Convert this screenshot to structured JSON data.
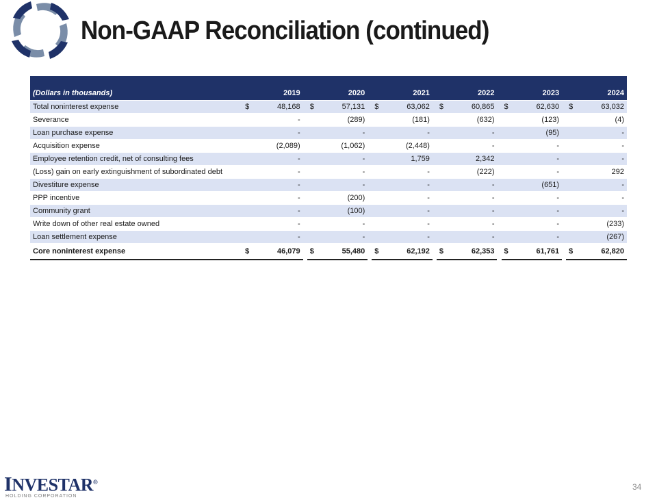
{
  "header": {
    "title": "Non-GAAP Reconciliation (continued)",
    "logo_icon": "swirl-logo-icon"
  },
  "colors": {
    "navy": "#1f3268",
    "band": "#dbe2f3",
    "steel": "#7a8da8",
    "logo_blue": "#1f3268"
  },
  "table": {
    "unit_label": "(Dollars in thousands)",
    "years": [
      "2019",
      "2020",
      "2021",
      "2022",
      "2023",
      "2024"
    ],
    "rows": [
      {
        "label": "Total noninterest expense",
        "cur": true,
        "values": [
          "48,168",
          "57,131",
          "63,062",
          "60,865",
          "62,630",
          "63,032"
        ]
      },
      {
        "label": "Severance",
        "cur": false,
        "values": [
          "-",
          "(289)",
          "(181)",
          "(632)",
          "(123)",
          "(4)"
        ]
      },
      {
        "label": "Loan purchase expense",
        "cur": false,
        "values": [
          "-",
          "-",
          "-",
          "-",
          "(95)",
          "-"
        ]
      },
      {
        "label": "Acquisition expense",
        "cur": false,
        "values": [
          "(2,089)",
          "(1,062)",
          "(2,448)",
          "-",
          "-",
          "-"
        ]
      },
      {
        "label": "Employee retention credit, net of consulting fees",
        "cur": false,
        "values": [
          "-",
          "-",
          "1,759",
          "2,342",
          "-",
          "-"
        ]
      },
      {
        "label": "(Loss) gain on early extinguishment of subordinated debt",
        "cur": false,
        "values": [
          "-",
          "-",
          "-",
          "(222)",
          "-",
          "292"
        ]
      },
      {
        "label": "Divestiture expense",
        "cur": false,
        "values": [
          "-",
          "-",
          "-",
          "-",
          "(651)",
          "-"
        ]
      },
      {
        "label": "PPP incentive",
        "cur": false,
        "values": [
          "-",
          "(200)",
          "-",
          "-",
          "-",
          "-"
        ]
      },
      {
        "label": "Community grant",
        "cur": false,
        "values": [
          "-",
          "(100)",
          "-",
          "-",
          "-",
          "-"
        ]
      },
      {
        "label": "Write down of other real estate owned",
        "cur": false,
        "values": [
          "-",
          "-",
          "-",
          "-",
          "-",
          "(233)"
        ]
      },
      {
        "label": "Loan settlement expense",
        "cur": false,
        "values": [
          "-",
          "-",
          "-",
          "-",
          "-",
          "(267)"
        ]
      }
    ],
    "total": {
      "label": "Core noninterest expense",
      "values": [
        "46,079",
        "55,480",
        "62,192",
        "62,353",
        "61,761",
        "62,820"
      ]
    },
    "currency_symbol": "$"
  },
  "footer": {
    "brand_first": "I",
    "brand_rest": "NVESTAR",
    "brand_mark": "®",
    "subtitle": "HOLDING CORPORATION",
    "page_number": "34"
  }
}
